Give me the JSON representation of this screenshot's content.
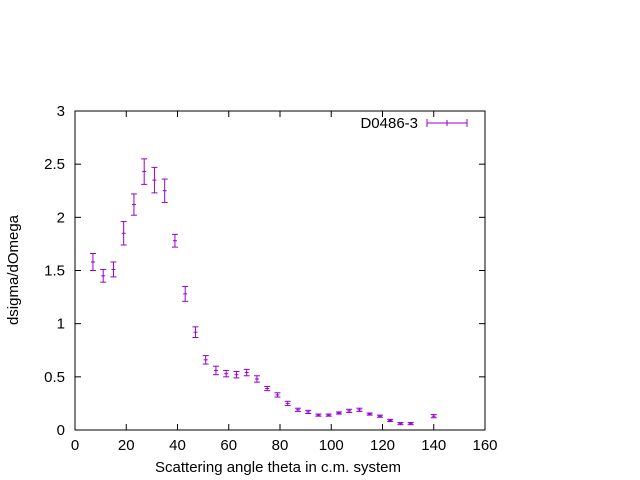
{
  "chart_data": {
    "type": "scatter",
    "xlabel": "Scattering angle theta in c.m. system",
    "ylabel": "dsigma/dOmega",
    "xlim": [
      0,
      160
    ],
    "ylim": [
      0,
      3
    ],
    "xticks": [
      "0",
      "20",
      "40",
      "60",
      "80",
      "100",
      "120",
      "140",
      "160"
    ],
    "yticks": [
      "0",
      "0.5",
      "1",
      "1.5",
      "2",
      "2.5",
      "3"
    ],
    "grid": false,
    "legend_position": "top-right",
    "series": [
      {
        "name": "D0486-3",
        "color": "#9400d3",
        "style": "errorbars",
        "points": [
          {
            "x": 7,
            "y": 1.58,
            "err": 0.08
          },
          {
            "x": 11,
            "y": 1.45,
            "err": 0.06
          },
          {
            "x": 15,
            "y": 1.51,
            "err": 0.07
          },
          {
            "x": 19,
            "y": 1.85,
            "err": 0.11
          },
          {
            "x": 23,
            "y": 2.12,
            "err": 0.1
          },
          {
            "x": 27,
            "y": 2.43,
            "err": 0.12
          },
          {
            "x": 31,
            "y": 2.35,
            "err": 0.12
          },
          {
            "x": 35,
            "y": 2.25,
            "err": 0.11
          },
          {
            "x": 39,
            "y": 1.78,
            "err": 0.06
          },
          {
            "x": 43,
            "y": 1.28,
            "err": 0.07
          },
          {
            "x": 47,
            "y": 0.92,
            "err": 0.05
          },
          {
            "x": 51,
            "y": 0.66,
            "err": 0.04
          },
          {
            "x": 55,
            "y": 0.56,
            "err": 0.04
          },
          {
            "x": 59,
            "y": 0.53,
            "err": 0.03
          },
          {
            "x": 63,
            "y": 0.52,
            "err": 0.03
          },
          {
            "x": 67,
            "y": 0.54,
            "err": 0.03
          },
          {
            "x": 71,
            "y": 0.48,
            "err": 0.03
          },
          {
            "x": 75,
            "y": 0.39,
            "err": 0.02
          },
          {
            "x": 79,
            "y": 0.33,
            "err": 0.02
          },
          {
            "x": 83,
            "y": 0.25,
            "err": 0.02
          },
          {
            "x": 87,
            "y": 0.19,
            "err": 0.015
          },
          {
            "x": 91,
            "y": 0.17,
            "err": 0.015
          },
          {
            "x": 95,
            "y": 0.14,
            "err": 0.01
          },
          {
            "x": 99,
            "y": 0.14,
            "err": 0.01
          },
          {
            "x": 103,
            "y": 0.16,
            "err": 0.01
          },
          {
            "x": 107,
            "y": 0.18,
            "err": 0.015
          },
          {
            "x": 111,
            "y": 0.19,
            "err": 0.015
          },
          {
            "x": 115,
            "y": 0.15,
            "err": 0.01
          },
          {
            "x": 119,
            "y": 0.13,
            "err": 0.01
          },
          {
            "x": 123,
            "y": 0.09,
            "err": 0.01
          },
          {
            "x": 127,
            "y": 0.06,
            "err": 0.01
          },
          {
            "x": 131,
            "y": 0.06,
            "err": 0.01
          },
          {
            "x": 140,
            "y": 0.13,
            "err": 0.015
          }
        ]
      }
    ]
  }
}
